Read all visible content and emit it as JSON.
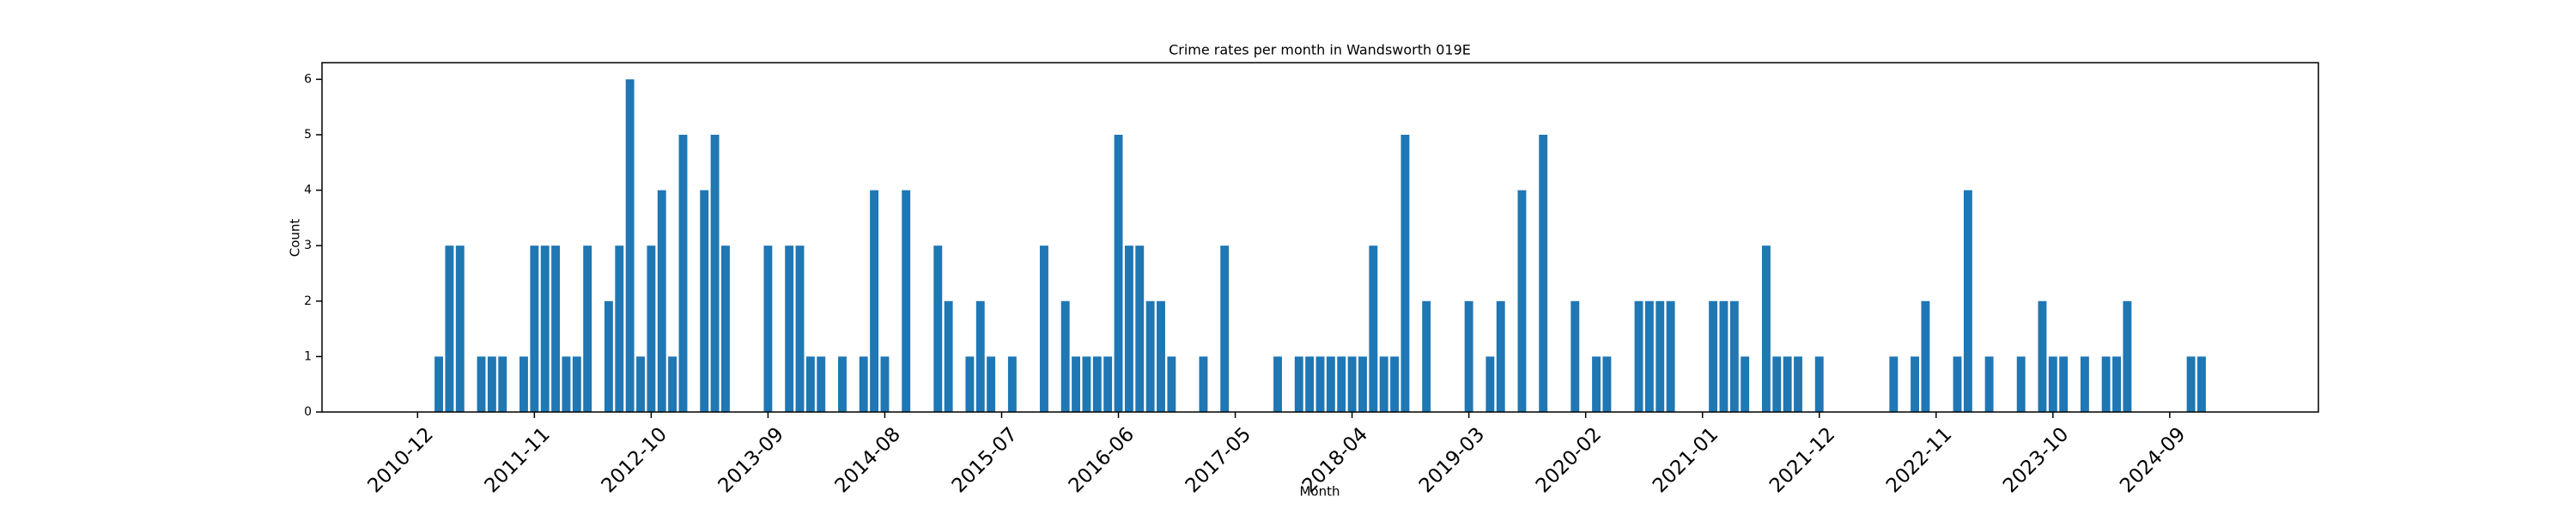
{
  "chart_data": {
    "type": "bar",
    "title": "Crime rates per month in Wandsworth 019E",
    "x_label": "Month",
    "y_label": "Count",
    "color": "#1f77b4",
    "x": [
      "2011-02",
      "2011-03",
      "2011-04",
      "2011-06",
      "2011-07",
      "2011-08",
      "2011-10",
      "2011-11",
      "2011-12",
      "2012-01",
      "2012-02",
      "2012-03",
      "2012-04",
      "2012-06",
      "2012-07",
      "2012-08",
      "2012-09",
      "2012-10",
      "2012-11",
      "2012-12",
      "2013-01",
      "2013-03",
      "2013-04",
      "2013-05",
      "2013-09",
      "2013-11",
      "2013-12",
      "2014-01",
      "2014-02",
      "2014-04",
      "2014-06",
      "2014-07",
      "2014-08",
      "2014-10",
      "2015-01",
      "2015-02",
      "2015-04",
      "2015-05",
      "2015-06",
      "2015-08",
      "2015-11",
      "2016-01",
      "2016-02",
      "2016-03",
      "2016-04",
      "2016-05",
      "2016-06",
      "2016-07",
      "2016-08",
      "2016-09",
      "2016-10",
      "2016-11",
      "2017-02",
      "2017-04",
      "2017-09",
      "2017-11",
      "2017-12",
      "2018-01",
      "2018-02",
      "2018-03",
      "2018-04",
      "2018-05",
      "2018-06",
      "2018-07",
      "2018-08",
      "2018-09",
      "2018-11",
      "2019-03",
      "2019-05",
      "2019-06",
      "2019-08",
      "2019-10",
      "2020-01",
      "2020-03",
      "2020-04",
      "2020-07",
      "2020-08",
      "2020-09",
      "2020-10",
      "2021-02",
      "2021-03",
      "2021-04",
      "2021-05",
      "2021-07",
      "2021-08",
      "2021-09",
      "2021-10",
      "2021-12",
      "2022-07",
      "2022-09",
      "2022-10",
      "2023-01",
      "2023-02",
      "2023-04",
      "2023-07",
      "2023-09",
      "2023-10",
      "2023-11",
      "2024-01",
      "2024-03",
      "2024-04",
      "2024-05",
      "2024-11",
      "2024-12"
    ],
    "values": [
      1,
      3,
      3,
      1,
      1,
      1,
      1,
      3,
      3,
      3,
      1,
      1,
      3,
      2,
      3,
      6,
      1,
      3,
      4,
      1,
      5,
      4,
      5,
      3,
      3,
      3,
      3,
      1,
      1,
      1,
      1,
      4,
      1,
      4,
      3,
      2,
      1,
      2,
      1,
      1,
      3,
      2,
      1,
      1,
      1,
      1,
      5,
      3,
      3,
      2,
      2,
      1,
      1,
      3,
      1,
      1,
      1,
      1,
      1,
      1,
      1,
      1,
      3,
      1,
      1,
      5,
      2,
      2,
      1,
      2,
      4,
      5,
      2,
      1,
      1,
      2,
      2,
      2,
      2,
      2,
      2,
      2,
      1,
      3,
      1,
      1,
      1,
      1,
      1,
      1,
      2,
      1,
      4,
      1,
      1,
      2,
      1,
      1,
      1,
      1,
      1,
      2,
      1,
      1
    ],
    "xlim": [
      "2010-03",
      "2025-11"
    ],
    "xticks": [
      "2010-12",
      "2011-11",
      "2012-10",
      "2013-09",
      "2014-08",
      "2015-07",
      "2016-06",
      "2017-05",
      "2018-04",
      "2019-03",
      "2020-02",
      "2021-01",
      "2021-12",
      "2022-11",
      "2023-10",
      "2024-09"
    ],
    "ylim": [
      0,
      6.3
    ],
    "yticks": [
      0,
      1,
      2,
      3,
      4,
      5,
      6
    ]
  }
}
